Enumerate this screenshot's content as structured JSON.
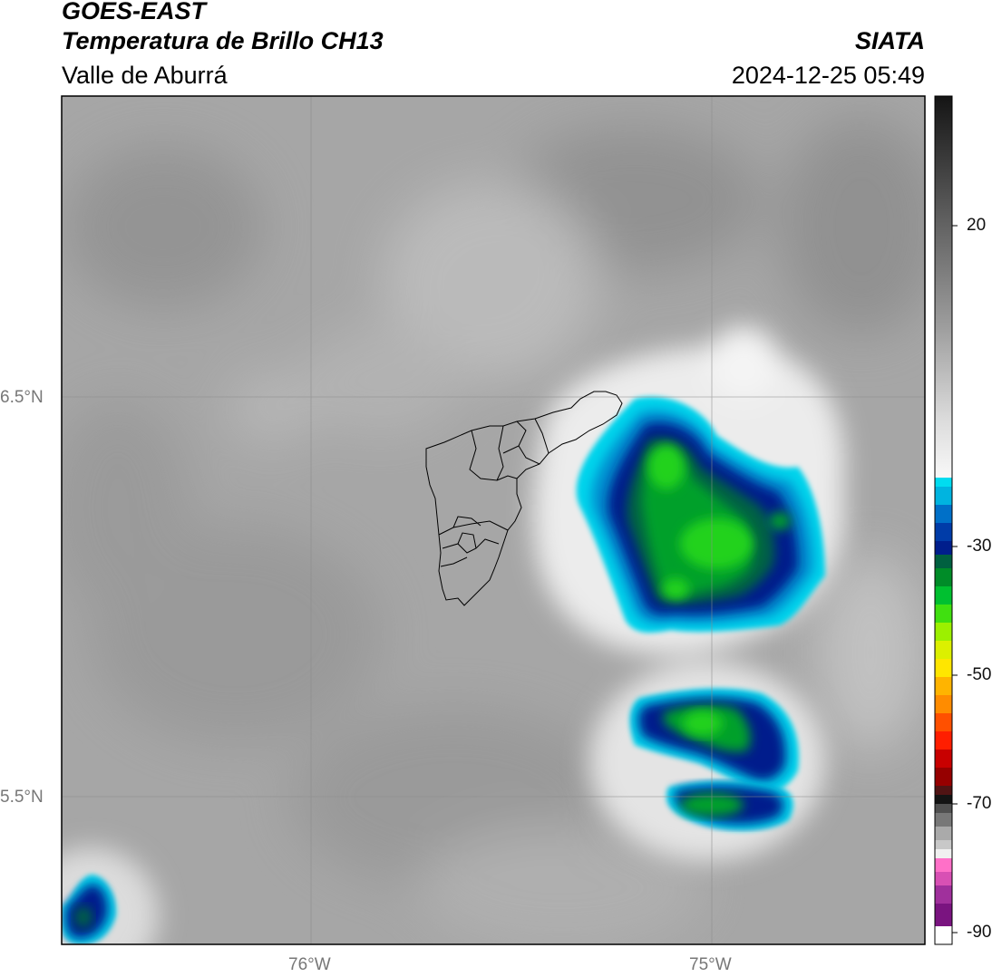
{
  "header": {
    "satellite": "GOES-EAST",
    "product": "Temperatura de Brillo CH13",
    "region": "Valle de Aburrá",
    "agency": "SIATA",
    "datetime": "2024-12-25 05:49"
  },
  "map": {
    "lat_labels": [
      "6.5°N",
      "5.5°N"
    ],
    "lon_labels": [
      "76°W",
      "75°W"
    ],
    "overlay": "municipality boundaries",
    "background_colors": {
      "light": "#bdbdbd",
      "mid": "#a4a4a4",
      "dark": "#8e8e8e"
    }
  },
  "colorbar": {
    "labels": [
      "20",
      "-30",
      "-50",
      "-70",
      "-90"
    ],
    "colors": {
      "warm": [
        "#141414",
        "#5a5a5a",
        "#9c9c9c",
        "#dcdcdc",
        "#f8f8f8"
      ],
      "cold": [
        "#00dcf0",
        "#0070c8",
        "#001e8c",
        "#006040",
        "#00c030",
        "#9cf000",
        "#ffe600",
        "#ff8c00",
        "#ff1e00",
        "#960000",
        "#141414",
        "#aaaaaa",
        "#f0f0f0",
        "#ff70c8",
        "#a0309c",
        "#7a1480",
        "#ffffff"
      ]
    }
  }
}
